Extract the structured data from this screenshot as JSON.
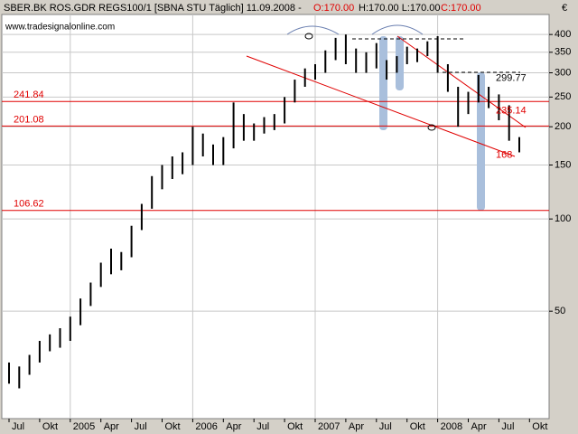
{
  "chart_data": {
    "type": "ohlc",
    "header": {
      "symbol": "SBER.BK ROS.GDR REGS100/1 [SBNA STU  Täglich] 11.09.2008 -",
      "open": "O:170.00",
      "high_low": "H:170.00 L:170.00",
      "close": "C:170.00"
    },
    "source": "www.tradesignalonline.com",
    "currency": "€",
    "categories": [
      "Jul",
      null,
      null,
      "Okt",
      null,
      null,
      "2005",
      null,
      null,
      "Apr",
      null,
      null,
      "Jul",
      null,
      null,
      "Okt",
      null,
      null,
      "2006",
      null,
      null,
      "Apr",
      null,
      null,
      "Jul",
      null,
      null,
      "Okt",
      null,
      null,
      "2007",
      null,
      null,
      "Apr",
      null,
      null,
      "Jul",
      null,
      null,
      "Okt",
      null,
      null,
      "2008",
      null,
      null,
      "Apr",
      null,
      null,
      "Jul",
      null,
      null,
      "Okt",
      null
    ],
    "high": [
      34,
      33,
      36,
      40,
      42,
      44,
      48,
      55,
      62,
      72,
      80,
      78,
      95,
      112,
      138,
      150,
      160,
      165,
      200,
      190,
      175,
      185,
      240,
      220,
      205,
      215,
      220,
      250,
      285,
      310,
      320,
      355,
      390,
      400,
      360,
      350,
      375,
      330,
      340,
      365,
      360,
      380,
      395,
      320,
      270,
      260,
      295,
      270,
      255,
      235,
      185,
      null,
      null
    ],
    "low": [
      29,
      28,
      31,
      34,
      37,
      38,
      40,
      45,
      52,
      60,
      66,
      68,
      75,
      92,
      108,
      125,
      135,
      140,
      150,
      160,
      150,
      150,
      170,
      180,
      180,
      190,
      195,
      205,
      240,
      270,
      285,
      300,
      330,
      320,
      300,
      300,
      310,
      285,
      300,
      320,
      325,
      340,
      300,
      260,
      200,
      220,
      240,
      230,
      210,
      180,
      165,
      null,
      null
    ],
    "color": "#000000",
    "log_scale": true,
    "ylim": [
      22.3,
      465
    ],
    "yticks": [
      50,
      100,
      150,
      200,
      250,
      300,
      350,
      400
    ],
    "grid": true,
    "levels": [
      {
        "value": 241.84,
        "label": "241.84",
        "color": "#e00000"
      },
      {
        "value": 201.08,
        "label": "201.08",
        "color": "#e00000"
      },
      {
        "value": 106.62,
        "label": "106.62",
        "color": "#e00000"
      }
    ],
    "annotations": [
      {
        "value": 299.77,
        "label": "299.77",
        "color": "#000000"
      },
      {
        "value": 235.14,
        "label": "235.14",
        "color": "#e00000"
      },
      {
        "value": 168,
        "label": "168",
        "color": "#e00000"
      }
    ]
  }
}
